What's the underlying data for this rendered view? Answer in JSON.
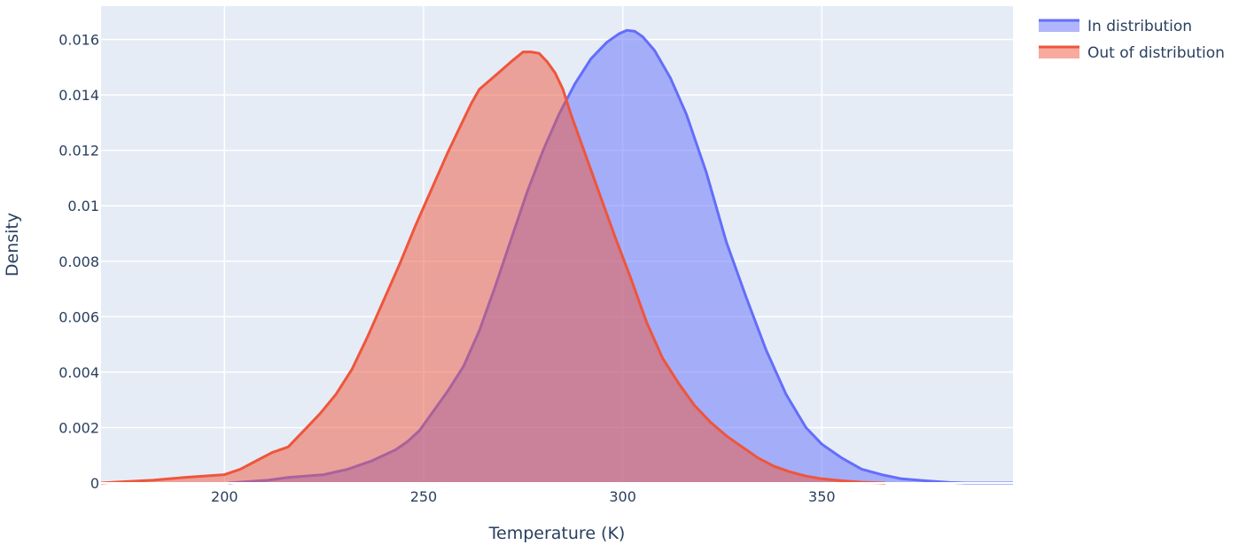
{
  "chart_data": {
    "type": "area",
    "title": "",
    "xlabel": "Temperature (K)",
    "ylabel": "Density",
    "xlim": [
      169,
      398
    ],
    "ylim": [
      0,
      0.0172
    ],
    "xticks": [
      200,
      250,
      300,
      350
    ],
    "xtick_labels": [
      "200",
      "250",
      "300",
      "350"
    ],
    "yticks": [
      0,
      0.002,
      0.004,
      0.006,
      0.008,
      0.01,
      0.012,
      0.014,
      0.016
    ],
    "ytick_labels": [
      "0",
      "0.002",
      "0.004",
      "0.006",
      "0.008",
      "0.01",
      "0.012",
      "0.014",
      "0.016"
    ],
    "grid": true,
    "legend_position": "top-right",
    "plot_background": "#e5ecf6",
    "series": [
      {
        "name": "In distribution",
        "color": "#636efa",
        "fill": "rgba(99,110,250,0.5)",
        "x": [
          201,
          211,
          216,
          225,
          231,
          237,
          243,
          246,
          249,
          252,
          256,
          260,
          264,
          268,
          272,
          276,
          280,
          284,
          288,
          292,
          296,
          299,
          301,
          303,
          305,
          308,
          312,
          316,
          321,
          326,
          331,
          336,
          341,
          346,
          350,
          355,
          360,
          365,
          370,
          376,
          382,
          386,
          393,
          398
        ],
        "y": [
          0,
          0.0001,
          0.0002,
          0.0003,
          0.0005,
          0.0008,
          0.0012,
          0.0015,
          0.0019,
          0.0025,
          0.0033,
          0.0042,
          0.0055,
          0.0071,
          0.0088,
          0.0105,
          0.012,
          0.0133,
          0.0144,
          0.0153,
          0.0159,
          0.0162,
          0.01633,
          0.0163,
          0.0161,
          0.0156,
          0.0146,
          0.0133,
          0.0112,
          0.0087,
          0.0067,
          0.0048,
          0.0032,
          0.002,
          0.0014,
          0.0009,
          0.0005,
          0.0003,
          0.00015,
          8e-05,
          2e-05,
          0,
          0,
          0
        ]
      },
      {
        "name": "Out of distribution",
        "color": "#ef553b",
        "fill": "rgba(239,85,59,0.5)",
        "x": [
          169,
          182,
          190,
          200,
          204,
          208,
          212,
          216,
          220,
          224,
          228,
          232,
          236,
          240,
          244,
          248,
          252,
          256,
          260,
          262,
          264,
          268,
          272,
          275,
          277,
          279,
          281,
          283,
          285,
          287,
          290,
          294,
          298,
          302,
          306,
          310,
          314,
          318,
          322,
          326,
          330,
          334,
          338,
          342,
          346,
          350,
          355,
          360,
          366
        ],
        "y": [
          0,
          0.0001,
          0.0002,
          0.0003,
          0.0005,
          0.0008,
          0.0011,
          0.0013,
          0.0019,
          0.0025,
          0.0032,
          0.0041,
          0.0053,
          0.0066,
          0.0079,
          0.0093,
          0.0106,
          0.0119,
          0.0131,
          0.0137,
          0.0142,
          0.0147,
          0.0152,
          0.01555,
          0.01555,
          0.0155,
          0.0152,
          0.0148,
          0.0142,
          0.0133,
          0.0121,
          0.0105,
          0.0089,
          0.0074,
          0.0058,
          0.0045,
          0.0036,
          0.0028,
          0.0022,
          0.0017,
          0.0013,
          0.0009,
          0.0006,
          0.0004,
          0.00025,
          0.00015,
          8e-05,
          3e-05,
          0
        ]
      }
    ]
  }
}
